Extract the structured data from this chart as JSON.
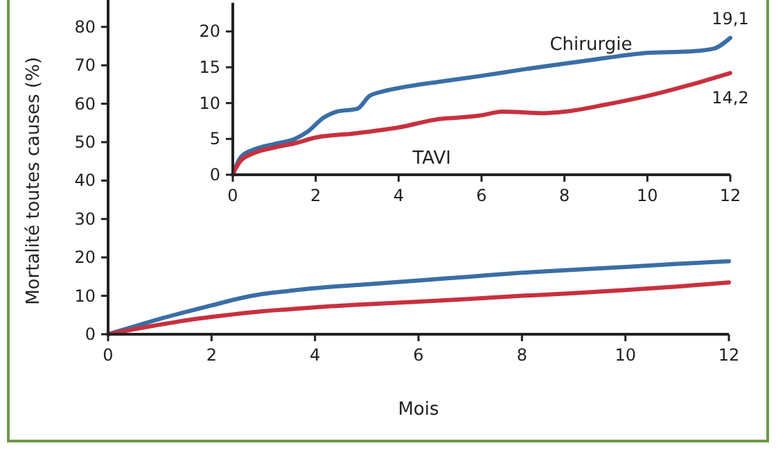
{
  "chart_data": [
    {
      "type": "line",
      "xlabel": "Mois",
      "ylabel": "Mortalité toutes causes (%)",
      "xlim": [
        0,
        12
      ],
      "xticks": [
        0,
        2,
        4,
        6,
        8,
        10,
        12
      ],
      "ylim": [
        0,
        87
      ],
      "yticks": [
        0,
        10,
        20,
        30,
        40,
        50,
        60,
        70,
        80
      ],
      "x": [
        0,
        0.5,
        1,
        1.5,
        2,
        2.5,
        3,
        3.5,
        4,
        5,
        6,
        7,
        8,
        9,
        10,
        11,
        12
      ],
      "series": [
        {
          "color": "#3a6ea5",
          "values": [
            0,
            2,
            4,
            5.8,
            7.5,
            9.2,
            10.5,
            11.3,
            12,
            13,
            14,
            15,
            16,
            16.8,
            17.5,
            18.3,
            19
          ]
        },
        {
          "color": "#c8303f",
          "values": [
            0,
            1.3,
            2.5,
            3.6,
            4.5,
            5.3,
            6,
            6.5,
            7,
            7.8,
            8.5,
            9.2,
            10,
            10.7,
            11.5,
            12.4,
            13.5
          ]
        }
      ]
    },
    {
      "type": "line",
      "xlim": [
        0,
        12
      ],
      "xticks": [
        0,
        2,
        4,
        6,
        8,
        10,
        12
      ],
      "ylim": [
        0,
        24
      ],
      "yticks": [
        0,
        5,
        10,
        15,
        20
      ],
      "annotations": [
        {
          "text": "19,1",
          "x": 12,
          "y": 19.1
        },
        {
          "text": "14,2",
          "x": 12,
          "y": 14.2
        }
      ],
      "series": [
        {
          "name": "Chirurgie",
          "color": "#3a6ea5",
          "x": [
            0,
            0.1,
            0.2,
            0.5,
            1,
            1.5,
            1.8,
            2.2,
            2.5,
            3,
            3.3,
            3.6,
            4,
            5,
            6,
            7,
            8,
            9,
            10,
            11,
            11.6,
            12
          ],
          "values": [
            0,
            1.5,
            2.5,
            3.5,
            4.3,
            5,
            6,
            8,
            8.8,
            9.2,
            11,
            11.6,
            12.1,
            13,
            13.8,
            14.7,
            15.5,
            16.3,
            17,
            17.2,
            17.6,
            19.1
          ]
        },
        {
          "name": "TAVI",
          "color": "#c8303f",
          "x": [
            0,
            0.1,
            0.2,
            0.5,
            1,
            1.5,
            2,
            3,
            4,
            5,
            5.5,
            6,
            6.5,
            7.5,
            8,
            9,
            10,
            11,
            12
          ],
          "values": [
            0,
            1.2,
            2,
            3,
            3.8,
            4.4,
            5.2,
            5.8,
            6.6,
            7.8,
            8,
            8.3,
            8.8,
            8.6,
            8.8,
            9.8,
            11,
            12.5,
            14.2
          ]
        }
      ]
    }
  ]
}
